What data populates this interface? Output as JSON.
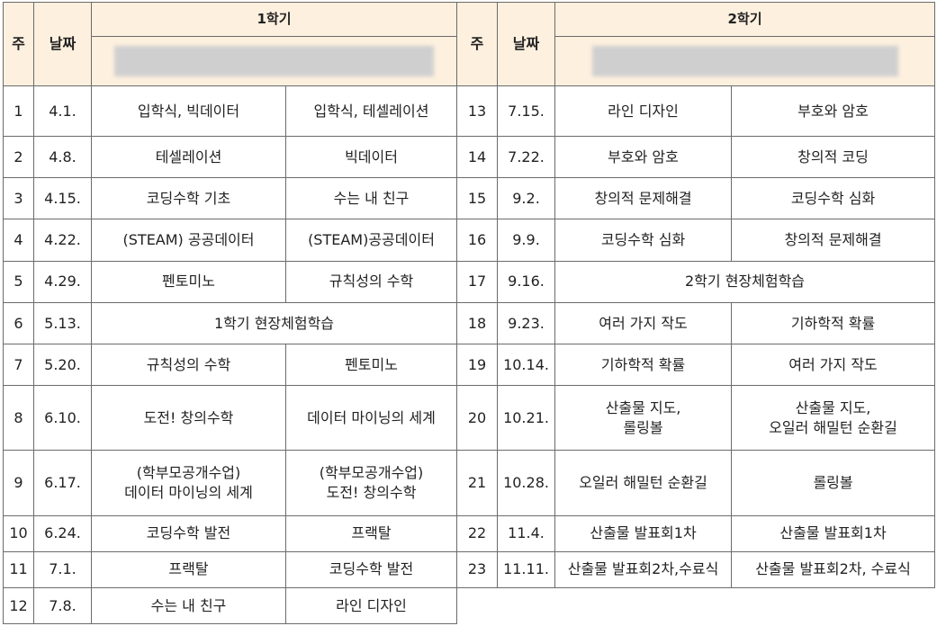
{
  "headers": {
    "week": "주",
    "date": "날짜",
    "semester1": "1학기",
    "semester2": "2학기"
  },
  "semester1_rows": [
    {
      "week": "1",
      "date": "4.1.",
      "a": [
        "입학식, 빅데이터"
      ],
      "b": [
        "입학식, 테셀레이션"
      ]
    },
    {
      "week": "2",
      "date": "4.8.",
      "a": [
        "테셀레이션"
      ],
      "b": [
        "빅데이터"
      ]
    },
    {
      "week": "3",
      "date": "4.15.",
      "a": [
        "코딩수학 기초"
      ],
      "b": [
        "수는 내 친구"
      ]
    },
    {
      "week": "4",
      "date": "4.22.",
      "a": [
        "(STEAM) 공공데이터"
      ],
      "b": [
        "(STEAM)공공데이터"
      ]
    },
    {
      "week": "5",
      "date": "4.29.",
      "a": [
        "펜토미노"
      ],
      "b": [
        "규칙성의 수학"
      ]
    },
    {
      "week": "6",
      "date": "5.13.",
      "merged": "1학기 현장체험학습"
    },
    {
      "week": "7",
      "date": "5.20.",
      "a": [
        "규칙성의 수학"
      ],
      "b": [
        "펜토미노"
      ]
    },
    {
      "week": "8",
      "date": "6.10.",
      "a": [
        "도전! 창의수학"
      ],
      "b": [
        "데이터 마이닝의 세계"
      ]
    },
    {
      "week": "9",
      "date": "6.17.",
      "a": [
        "(학부모공개수업)",
        "데이터 마이닝의 세계"
      ],
      "b": [
        "(학부모공개수업)",
        "도전! 창의수학"
      ]
    },
    {
      "week": "10",
      "date": "6.24.",
      "a": [
        "코딩수학 발전"
      ],
      "b": [
        "프랙탈"
      ]
    },
    {
      "week": "11",
      "date": "7.1.",
      "a": [
        "프랙탈"
      ],
      "b": [
        "코딩수학 발전"
      ]
    },
    {
      "week": "12",
      "date": "7.8.",
      "a": [
        "수는 내 친구"
      ],
      "b": [
        "라인 디자인"
      ]
    }
  ],
  "semester2_rows": [
    {
      "week": "13",
      "date": "7.15.",
      "a": [
        "라인 디자인"
      ],
      "b": [
        "부호와 암호"
      ]
    },
    {
      "week": "14",
      "date": "7.22.",
      "a": [
        "부호와 암호"
      ],
      "b": [
        "창의적 코딩"
      ]
    },
    {
      "week": "15",
      "date": "9.2.",
      "a": [
        "창의적 문제해결"
      ],
      "b": [
        "코딩수학 심화"
      ]
    },
    {
      "week": "16",
      "date": "9.9.",
      "a": [
        "코딩수학 심화"
      ],
      "b": [
        "창의적 문제해결"
      ]
    },
    {
      "week": "17",
      "date": "9.16.",
      "merged": "2학기 현장체험학습"
    },
    {
      "week": "18",
      "date": "9.23.",
      "a": [
        "여러 가지 작도"
      ],
      "b": [
        "기하학적 확률"
      ]
    },
    {
      "week": "19",
      "date": "10.14.",
      "a": [
        "기하학적 확률"
      ],
      "b": [
        "여러 가지 작도"
      ]
    },
    {
      "week": "20",
      "date": "10.21.",
      "a": [
        "산출물 지도,",
        "롤링볼"
      ],
      "b": [
        "산출물 지도,",
        "오일러 해밀턴 순환길"
      ]
    },
    {
      "week": "21",
      "date": "10.28.",
      "a": [
        "오일러 해밀턴 순환길"
      ],
      "b": [
        "롤링볼"
      ]
    },
    {
      "week": "22",
      "date": "11.4.",
      "a": [
        "산출물 발표회1차"
      ],
      "b": [
        "산출물 발표회1차"
      ]
    },
    {
      "week": "23",
      "date": "11.11.",
      "a": [
        "산출물 발표회2차,수료식"
      ],
      "b": [
        "산출물 발표회2차, 수료식"
      ]
    }
  ]
}
